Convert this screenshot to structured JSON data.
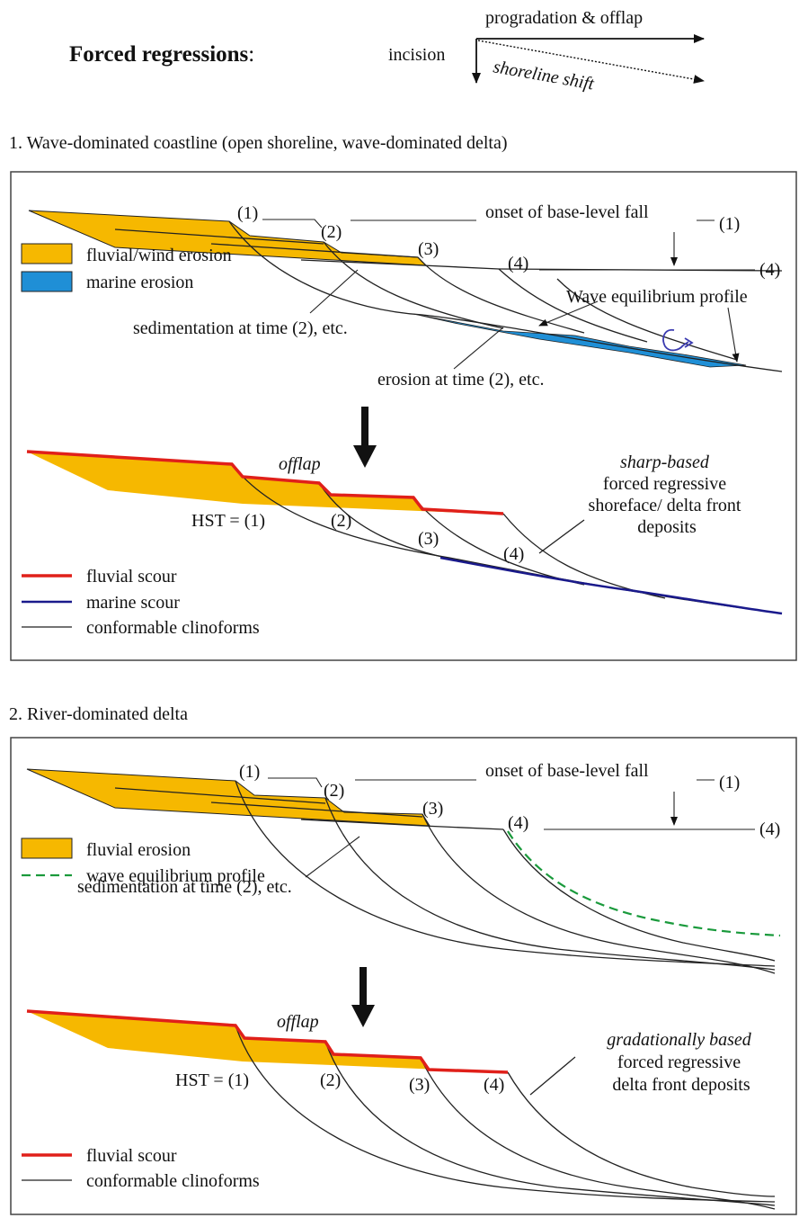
{
  "header": {
    "title": "Forced regressions",
    "title_colon": ":",
    "incision": "incision",
    "progradation": "progradation & offlap",
    "shoreline_shift": "shoreline shift"
  },
  "section1": {
    "heading": "1. Wave-dominated coastline (open shoreline, wave-dominated delta)",
    "top": {
      "labels": [
        "(1)",
        "(2)",
        "(3)",
        "(4)"
      ],
      "onset": "onset of base-level fall",
      "onset_right_1": "(1)",
      "onset_right_4": "(4)",
      "wave_profile": "Wave equilibrium profile",
      "sedimentation": "sedimentation at time (2), etc.",
      "erosion": "erosion at time (2), etc.",
      "legend": [
        {
          "label": "fluvial/wind erosion",
          "color": "#f6b800"
        },
        {
          "label": "marine erosion",
          "color": "#1f8fd6"
        }
      ]
    },
    "bottom": {
      "offlap": "offlap",
      "hst": "HST = (1)",
      "labels": [
        "(2)",
        "(3)",
        "(4)"
      ],
      "note_italic": "sharp-based",
      "note_lines": [
        "forced regressive",
        "shoreface/ delta front",
        "deposits"
      ],
      "legend": [
        {
          "label": "fluvial scour",
          "color": "#e0201a"
        },
        {
          "label": "marine scour",
          "color": "#1a1a8c"
        },
        {
          "label": "conformable clinoforms",
          "color": "#222222"
        }
      ]
    }
  },
  "section2": {
    "heading": "2. River-dominated delta",
    "top": {
      "labels": [
        "(1)",
        "(2)",
        "(3)",
        "(4)"
      ],
      "onset": "onset of base-level fall",
      "onset_right_1": "(1)",
      "onset_right_4": "(4)",
      "sedimentation": "sedimentation at time (2), etc.",
      "legend": [
        {
          "label": "fluvial erosion",
          "color": "#f6b800"
        },
        {
          "label": "wave equilibrium profile",
          "color": "#1a9a3c"
        }
      ]
    },
    "bottom": {
      "offlap": "offlap",
      "hst": "HST = (1)",
      "labels": [
        "(2)",
        "(3)",
        "(4)"
      ],
      "note_italic": "gradationally based",
      "note_lines": [
        "forced regressive",
        "delta front deposits"
      ],
      "legend": [
        {
          "label": "fluvial scour",
          "color": "#e0201a"
        },
        {
          "label": "conformable clinoforms",
          "color": "#222222"
        }
      ]
    }
  },
  "colors": {
    "fluvial_fill": "#f6b800",
    "marine_fill": "#1f8fd6",
    "fluvial_scour": "#e0201a",
    "marine_scour": "#1a1a8c",
    "wave_profile": "#1a9a3c",
    "handdrawn_arrow": "#3a3ab0"
  }
}
